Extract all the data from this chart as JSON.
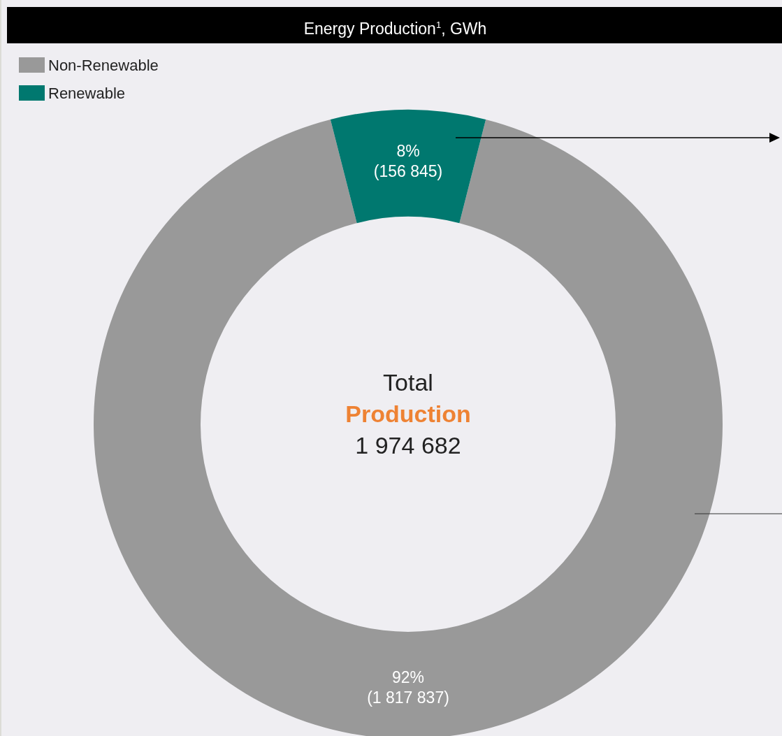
{
  "chart_data": {
    "type": "donut",
    "title": "Energy Production$^{1}$, GWh",
    "categories": [
      "Non-Renewable",
      "Renewable"
    ],
    "values": [
      1817837,
      156845
    ],
    "colors": [
      "#999999",
      "#00786f"
    ],
    "value_labels": [
      "92%\n(1 817 837)",
      "8%\n(156 845)"
    ],
    "legend": "top left",
    "annotations": [
      "Total",
      "Production",
      "1 974 682"
    ]
  }
}
